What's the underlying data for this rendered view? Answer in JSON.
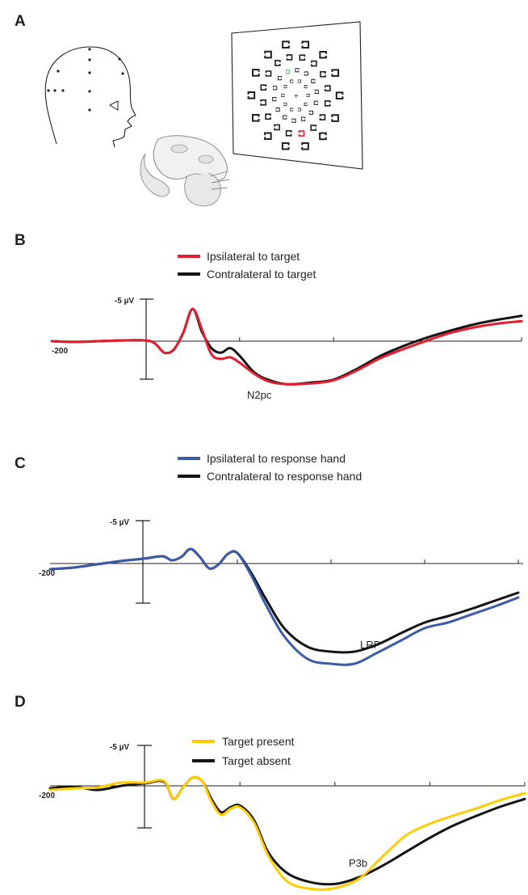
{
  "panels": {
    "a": {
      "letter": "A"
    },
    "b": {
      "letter": "B"
    },
    "c": {
      "letter": "C"
    },
    "d": {
      "letter": "D"
    }
  },
  "colors": {
    "red": "#e31e2d",
    "black": "#141414",
    "blue": "#3b5ba9",
    "yellow": "#ffcc00"
  },
  "chart_data": [
    {
      "panel": "B",
      "type": "line",
      "x_start_label": "-200",
      "y_scale_label": "-5 µV",
      "y_inverted": true,
      "annotation": "N2pc",
      "x_range_ms": [
        -200,
        800
      ],
      "series": [
        {
          "name": "Ipsilateral to target",
          "color": "#e31e2d",
          "x": [
            -200,
            -150,
            -100,
            -50,
            0,
            20,
            40,
            60,
            80,
            100,
            120,
            140,
            160,
            180,
            200,
            230,
            260,
            300,
            350,
            400,
            450,
            500,
            550,
            600,
            650,
            700,
            750,
            800
          ],
          "y": [
            0,
            0.1,
            0,
            -0.1,
            -0.1,
            0.3,
            1.5,
            1.1,
            -1.1,
            -4.2,
            -1.5,
            1.7,
            2.3,
            2.1,
            2.8,
            4.2,
            5.2,
            5.6,
            5.5,
            5.1,
            3.8,
            2.2,
            1.0,
            -0.1,
            -1.1,
            -1.8,
            -2.3,
            -2.6
          ]
        },
        {
          "name": "Contralateral to target",
          "color": "#141414",
          "x": [
            -200,
            -150,
            -100,
            -50,
            0,
            20,
            40,
            60,
            80,
            100,
            120,
            140,
            160,
            180,
            200,
            230,
            260,
            300,
            350,
            400,
            450,
            500,
            550,
            600,
            650,
            700,
            750,
            800
          ],
          "y": [
            0,
            0.1,
            0,
            -0.1,
            -0.1,
            0.3,
            1.5,
            1.1,
            -1.1,
            -4.2,
            -1.2,
            0.9,
            1.5,
            0.9,
            1.9,
            4.0,
            5.0,
            5.6,
            5.4,
            5.0,
            3.6,
            1.9,
            0.6,
            -0.5,
            -1.4,
            -2.2,
            -2.8,
            -3.3
          ]
        }
      ]
    },
    {
      "panel": "C",
      "type": "line",
      "x_start_label": "-200",
      "y_scale_label": "-5 µV",
      "y_inverted": true,
      "annotation": "LRP",
      "x_range_ms": [
        -200,
        800
      ],
      "series": [
        {
          "name": "Ipsilateral to response hand",
          "color": "#3b5ba9",
          "x": [
            -200,
            -150,
            -100,
            -50,
            0,
            40,
            60,
            80,
            100,
            120,
            140,
            160,
            180,
            200,
            230,
            260,
            300,
            350,
            400,
            450,
            500,
            550,
            600,
            650,
            700,
            750,
            800
          ],
          "y": [
            0.7,
            0.5,
            0.1,
            -0.3,
            -0.6,
            -0.9,
            -0.4,
            -0.8,
            -1.8,
            -0.8,
            0.6,
            0.1,
            -1.2,
            -1.3,
            1.5,
            5.0,
            9.0,
            11.8,
            12.4,
            12.4,
            11.0,
            9.5,
            8.0,
            7.3,
            6.3,
            5.3,
            4.2
          ]
        },
        {
          "name": "Contralateral to response hand",
          "color": "#141414",
          "x": [
            -200,
            -150,
            -100,
            -50,
            0,
            40,
            60,
            80,
            100,
            120,
            140,
            160,
            180,
            200,
            230,
            260,
            300,
            350,
            400,
            450,
            500,
            550,
            600,
            650,
            700,
            750,
            800
          ],
          "y": [
            0.7,
            0.5,
            0.1,
            -0.3,
            -0.6,
            -0.9,
            -0.4,
            -0.8,
            -1.8,
            -0.8,
            0.6,
            0.1,
            -1.2,
            -1.3,
            1.2,
            4.3,
            8.0,
            10.3,
            10.9,
            10.9,
            10.0,
            8.6,
            7.3,
            6.5,
            5.6,
            4.6,
            3.6
          ]
        }
      ]
    },
    {
      "panel": "D",
      "type": "line",
      "x_start_label": "-200",
      "y_scale_label": "-5 µV",
      "y_inverted": true,
      "annotation": "P3b",
      "x_range_ms": [
        -200,
        800
      ],
      "series": [
        {
          "name": "Target present",
          "color": "#ffcc00",
          "x": [
            -200,
            -150,
            -100,
            -50,
            0,
            40,
            60,
            80,
            100,
            120,
            140,
            160,
            180,
            200,
            230,
            260,
            300,
            350,
            400,
            450,
            500,
            550,
            600,
            650,
            700,
            750,
            800
          ],
          "y": [
            0.5,
            0.3,
            0.2,
            -0.4,
            -0.4,
            -0.6,
            1.6,
            0.2,
            -1.0,
            -0.6,
            1.9,
            3.5,
            2.8,
            2.6,
            4.5,
            8.5,
            11.6,
            12.5,
            12.4,
            11.3,
            8.6,
            6.0,
            4.6,
            3.6,
            2.7,
            1.7,
            0.9
          ]
        },
        {
          "name": "Target absent",
          "color": "#141414",
          "x": [
            -200,
            -150,
            -100,
            -50,
            0,
            40,
            60,
            80,
            100,
            120,
            140,
            160,
            180,
            200,
            230,
            260,
            300,
            350,
            400,
            450,
            500,
            550,
            600,
            650,
            700,
            750,
            800
          ],
          "y": [
            0.3,
            0.1,
            0.5,
            0.0,
            -0.3,
            -0.5,
            1.6,
            0.2,
            -1.0,
            -0.6,
            1.6,
            3.2,
            2.6,
            2.4,
            4.2,
            8.1,
            10.6,
            11.7,
            11.9,
            11.1,
            9.7,
            8.0,
            6.3,
            4.8,
            3.6,
            2.5,
            1.6
          ]
        }
      ]
    }
  ]
}
